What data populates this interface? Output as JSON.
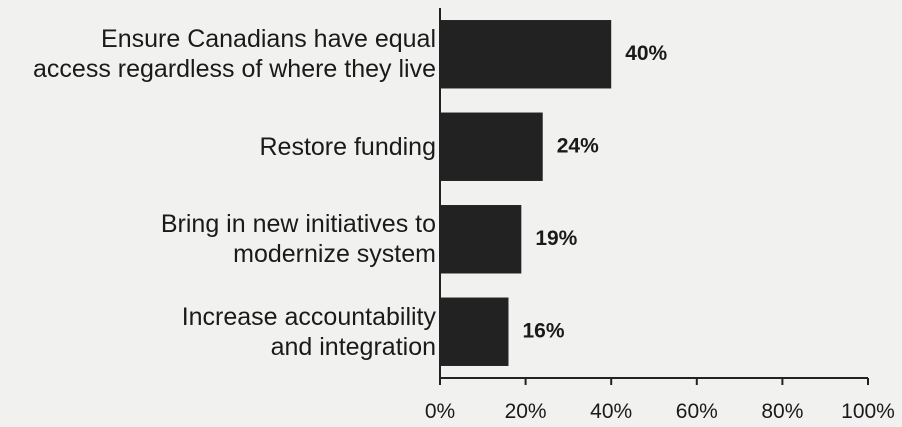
{
  "chart_data": {
    "type": "bar",
    "orientation": "horizontal",
    "categories": [
      "Ensure Canadians have equal\naccess regardless of where they live",
      "Restore funding",
      "Bring in new initiatives to\nmodernize system",
      "Increase accountability\nand integration"
    ],
    "values": [
      40,
      24,
      19,
      16
    ],
    "value_labels": [
      "40%",
      "24%",
      "19%",
      "16%"
    ],
    "color": "#222222",
    "xlim": [
      0,
      100
    ],
    "xticks": [
      {
        "value": 0,
        "label": "0%"
      },
      {
        "value": 20,
        "label": "20%"
      },
      {
        "value": 40,
        "label": "40%"
      },
      {
        "value": 60,
        "label": "60%"
      },
      {
        "value": 80,
        "label": "80%"
      },
      {
        "value": 100,
        "label": "100%"
      }
    ]
  }
}
